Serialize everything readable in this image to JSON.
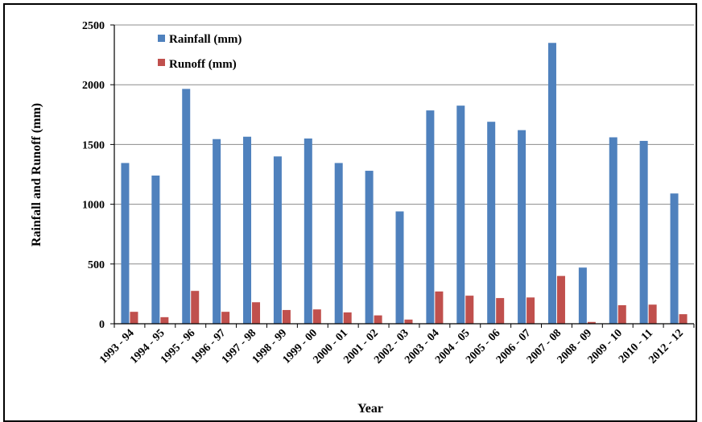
{
  "chart_data": {
    "type": "bar",
    "xlabel": "Year",
    "ylabel": "Rainfall and Runoff (mm)",
    "ylim": [
      0,
      2500
    ],
    "yticks": [
      0,
      500,
      1000,
      1500,
      2000,
      2500
    ],
    "grid": true,
    "legend_position": "top-left",
    "categories": [
      "1993 - 94",
      "1994 - 95",
      "1995 - 96",
      "1996 - 97",
      "1997 - 98",
      "1998 - 99",
      "1999 - 00",
      "2000 - 01",
      "2001 - 02",
      "2002 - 03",
      "2003 - 04",
      "2004 - 05",
      "2005 - 06",
      "2006 - 07",
      "2007 - 08",
      "2008 - 09",
      "2009 - 10",
      "2010 - 11",
      "2012 - 12"
    ],
    "series": [
      {
        "name": "Rainfall (mm)",
        "color": "#4F81BD",
        "values": [
          1345,
          1240,
          1965,
          1545,
          1565,
          1400,
          1550,
          1345,
          1280,
          940,
          1785,
          1825,
          1690,
          1620,
          2350,
          470,
          1560,
          1530,
          1090
        ]
      },
      {
        "name": "Runoff (mm)",
        "color": "#C0504D",
        "values": [
          100,
          55,
          275,
          100,
          180,
          115,
          120,
          95,
          70,
          35,
          270,
          235,
          215,
          220,
          400,
          15,
          155,
          160,
          80
        ]
      }
    ]
  }
}
